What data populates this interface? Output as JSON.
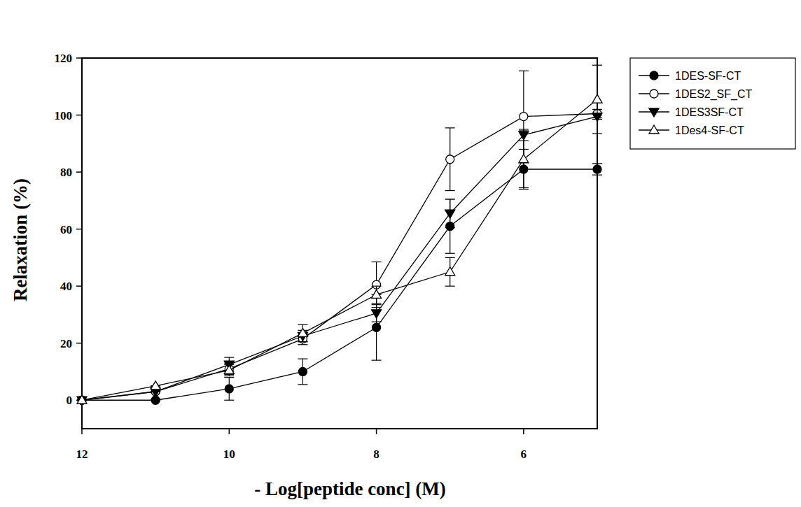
{
  "chart_data": {
    "type": "line",
    "x_label": "- Log[peptide conc] (M)",
    "y_label": "Relaxation (%)",
    "x": [
      12,
      11,
      10,
      9,
      8,
      7,
      6,
      5
    ],
    "xlim": [
      12,
      5
    ],
    "xticks": [
      12,
      10,
      8,
      6
    ],
    "ylim": [
      -10,
      120
    ],
    "yticks": [
      0,
      20,
      40,
      60,
      80,
      100,
      120
    ],
    "grid": false,
    "legend": "outside-top-right",
    "series": [
      {
        "name": "1DES-SF-CT",
        "color": "#000000",
        "marker": "circle-filled",
        "line_style": "solid",
        "values": [
          0,
          0,
          4,
          10,
          25.5,
          61,
          81,
          81
        ],
        "errors": [
          0,
          0,
          4,
          4.5,
          11.5,
          9.5,
          7,
          2
        ]
      },
      {
        "name": "1DES2_SF_CT",
        "color": "#000000",
        "marker": "circle-open",
        "line_style": "solid",
        "values": [
          0,
          3,
          11,
          21.5,
          40.5,
          84.5,
          99.5,
          100.5
        ],
        "errors": [
          0,
          0,
          2,
          2,
          8,
          11,
          16,
          1.5
        ]
      },
      {
        "name": "1DES3SF-CT",
        "color": "#000000",
        "marker": "triangle-down-filled",
        "line_style": "solid",
        "values": [
          0,
          3,
          12.5,
          22.5,
          30.5,
          65.5,
          93,
          99.5
        ],
        "errors": [
          0,
          0,
          2.5,
          2,
          3,
          5,
          2,
          1
        ]
      },
      {
        "name": "1Des4-SF-CT",
        "color": "#000000",
        "marker": "triangle-up-open",
        "line_style": "solid",
        "values": [
          0,
          5,
          10.5,
          23.5,
          37,
          45,
          84.5,
          105.5
        ],
        "errors": [
          0,
          0,
          2,
          3,
          3,
          5,
          10,
          12
        ]
      }
    ]
  }
}
